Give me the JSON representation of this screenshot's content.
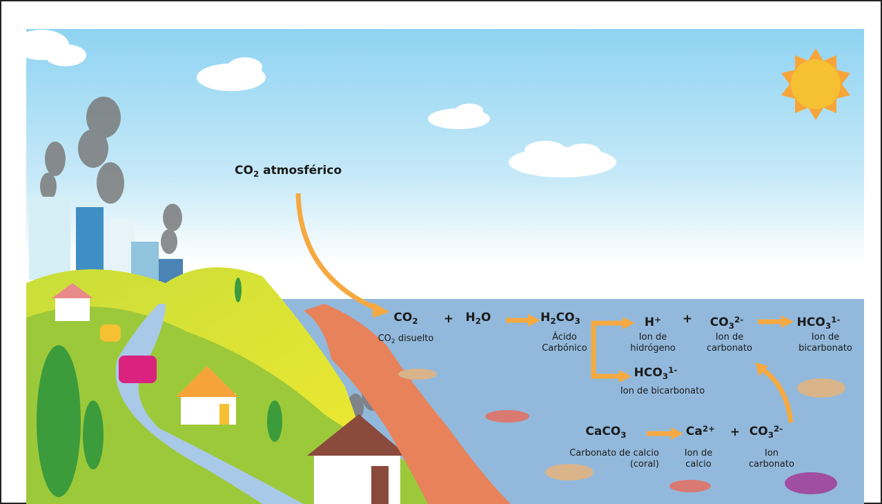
{
  "formulas": [
    {
      "formula": [
        {
          "text": "CO"
        },
        {
          "sub": "2"
        },
        {
          "text": " atmosférico"
        }
      ],
      "caption": []
    },
    {
      "formula": [
        {
          "text": "CO"
        },
        {
          "sub": "2"
        }
      ],
      "caption": [
        [
          {
            "text": "CO"
          },
          {
            "sub": "2"
          },
          {
            "text": " disuelto"
          }
        ]
      ]
    },
    {
      "formula": [
        {
          "text": "+"
        }
      ],
      "caption": []
    },
    {
      "formula": [
        {
          "text": "H"
        },
        {
          "sub": "2"
        },
        {
          "text": "O"
        }
      ],
      "caption": []
    },
    {
      "formula": [
        {
          "text": "H"
        },
        {
          "sub": "2"
        },
        {
          "text": "CO"
        },
        {
          "sub": "3"
        }
      ],
      "caption": [
        [
          {
            "text": "Ácido"
          }
        ],
        [
          {
            "text": "Carbónico"
          }
        ]
      ]
    },
    {
      "formula": [
        {
          "text": "H"
        },
        {
          "sup": "+"
        }
      ],
      "caption": [
        [
          {
            "text": "Ion de"
          }
        ],
        [
          {
            "text": "hidrógeno"
          }
        ]
      ]
    },
    {
      "formula": [
        {
          "text": "+"
        }
      ],
      "caption": []
    },
    {
      "formula": [
        {
          "text": "CO"
        },
        {
          "sub": "3"
        },
        {
          "sup": "2-"
        }
      ],
      "caption": [
        [
          {
            "text": "Ion de"
          }
        ],
        [
          {
            "text": "carbonato"
          }
        ]
      ]
    },
    {
      "formula": [
        {
          "text": "HCO"
        },
        {
          "sub": "3"
        },
        {
          "sup": "1-"
        }
      ],
      "caption": [
        [
          {
            "text": "Ion de"
          }
        ],
        [
          {
            "text": "bicarbonato"
          }
        ]
      ]
    },
    {
      "formula": [
        {
          "text": "HCO"
        },
        {
          "sub": "3"
        },
        {
          "sup": "1-"
        }
      ],
      "caption": [
        [
          {
            "text": "Ion de bicarbonato"
          }
        ]
      ]
    },
    {
      "formula": [
        {
          "text": "CaCO"
        },
        {
          "sub": "3"
        }
      ],
      "caption": [
        [
          {
            "text": "Carbonato de calcio"
          }
        ],
        [
          {
            "text": "(coral)"
          }
        ]
      ]
    },
    {
      "formula": [
        {
          "text": "Ca"
        },
        {
          "sup": "2+"
        }
      ],
      "caption": [
        [
          {
            "text": "Ion de"
          }
        ],
        [
          {
            "text": "calcio"
          }
        ]
      ]
    },
    {
      "formula": [
        {
          "text": "+"
        }
      ],
      "caption": []
    },
    {
      "formula": [
        {
          "text": "CO"
        },
        {
          "sub": "3"
        },
        {
          "sup": "2-"
        }
      ],
      "caption": [
        [
          {
            "text": "Ion"
          }
        ],
        [
          {
            "text": "carbonato"
          }
        ]
      ]
    }
  ]
}
